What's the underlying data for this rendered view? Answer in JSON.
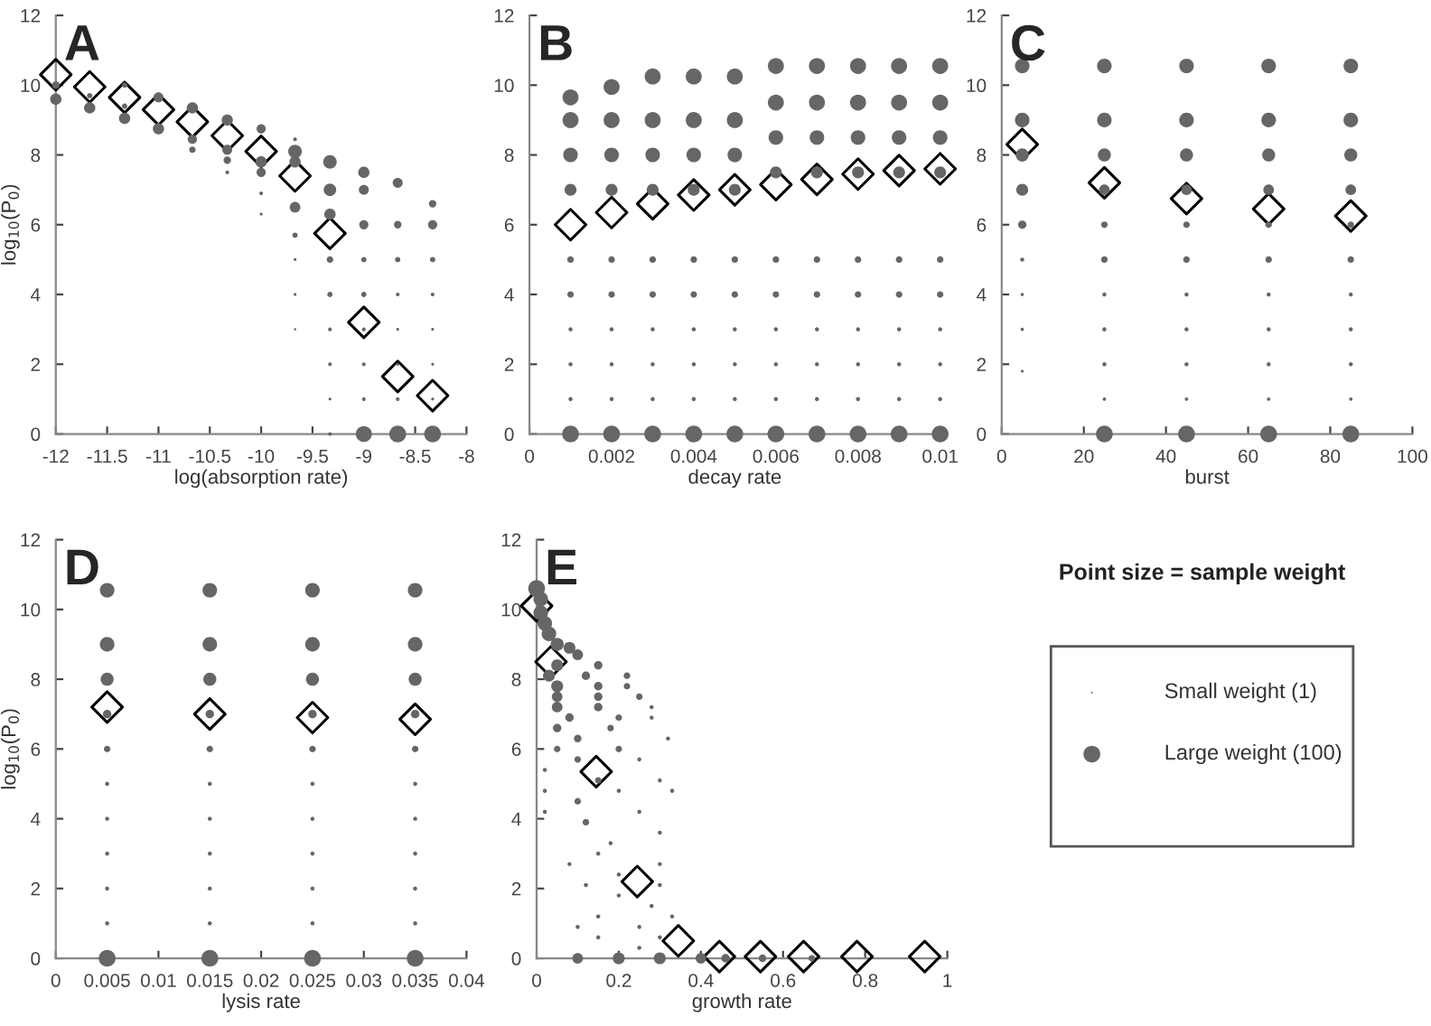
{
  "chart_data": [
    {
      "type": "scatter",
      "title": "A",
      "xlabel": "log(absorption rate)",
      "ylabel": "log$_{10}$(P$_{0}$)",
      "xlim": [
        -12,
        -8
      ],
      "xticks": [
        -12,
        -11.5,
        -11,
        -10.5,
        -10,
        -9.5,
        -9,
        -8.5,
        -8
      ],
      "ylim": [
        0,
        12
      ],
      "yticks": [
        0,
        2,
        4,
        6,
        8,
        10,
        12
      ],
      "grid": false,
      "series": [
        {
          "type": "bubble",
          "color": "#666666",
          "x": [
            -12,
            -12,
            -11.67,
            -11.67,
            -11.33,
            -11.33,
            -11.33,
            -11,
            -11,
            -10.67,
            -10.67,
            -10.67,
            -10.33,
            -10.33,
            -10.33,
            -10.33,
            -10,
            -10,
            -10,
            -10,
            -10,
            -9.67,
            -9.67,
            -9.67,
            -9.67,
            -9.67,
            -9.67,
            -9.67,
            -9.67,
            -9.33,
            -9.33,
            -9.33,
            -9.33,
            -9.33,
            -9.33,
            -9.33,
            -9.33,
            -9.33,
            -9,
            -9,
            -9,
            -9,
            -9,
            -9,
            -9,
            -9,
            -9,
            -8.67,
            -8.67,
            -8.67,
            -8.67,
            -8.67,
            -8.67,
            -8.67,
            -8.67,
            -8.33,
            -8.33,
            -8.33,
            -8.33,
            -8.33,
            -8.33,
            -8.33,
            -8.33
          ],
          "values": [
            9.6,
            10.0,
            9.35,
            9.7,
            9.05,
            9.4,
            10.0,
            8.75,
            9.65,
            8.15,
            8.45,
            9.35,
            7.5,
            7.85,
            8.15,
            9.0,
            6.3,
            6.9,
            7.5,
            7.8,
            8.75,
            3.0,
            4.0,
            5.0,
            5.7,
            6.5,
            7.8,
            8.1,
            8.45,
            0,
            1,
            2,
            3,
            4,
            5,
            6.3,
            7.0,
            7.8,
            0,
            1,
            2,
            3,
            4,
            5,
            6,
            7,
            7.5,
            0,
            1,
            2,
            3,
            4,
            5,
            6,
            7.2,
            0,
            1,
            2,
            3,
            4,
            5,
            6,
            6.6
          ],
          "sizes": [
            0.45,
            0.2,
            0.45,
            0.1,
            0.45,
            0.1,
            0.1,
            0.45,
            0.35,
            0.15,
            0.3,
            0.45,
            0.05,
            0.2,
            0.35,
            0.45,
            0.03,
            0.05,
            0.3,
            0.45,
            0.3,
            0.02,
            0.03,
            0.03,
            0.1,
            0.4,
            0.45,
            0.65,
            0.05,
            0.05,
            0.03,
            0.05,
            0.05,
            0.1,
            0.15,
            0.45,
            0.55,
            0.65,
            0.9,
            0.05,
            0.05,
            0.05,
            0.1,
            0.1,
            0.3,
            0.35,
            0.45,
            1,
            0.05,
            0.03,
            0.03,
            0.05,
            0.1,
            0.2,
            0.35,
            1,
            0.03,
            0.03,
            0.03,
            0.05,
            0.1,
            0.3,
            0.2
          ]
        },
        {
          "type": "scatter",
          "marker": "diamond",
          "color": "#000000",
          "x": [
            -12,
            -11.67,
            -11.33,
            -11,
            -10.67,
            -10.33,
            -10,
            -9.67,
            -9.33,
            -9,
            -8.67,
            -8.33
          ],
          "values": [
            10.3,
            9.95,
            9.65,
            9.3,
            8.95,
            8.55,
            8.1,
            7.4,
            5.75,
            3.2,
            1.65,
            1.1
          ]
        }
      ]
    },
    {
      "type": "scatter",
      "title": "B",
      "xlabel": "decay rate",
      "xlim": [
        0,
        0.01
      ],
      "xticks": [
        0,
        0.002,
        0.004,
        0.006,
        0.008,
        0.01
      ],
      "ylim": [
        0,
        12
      ],
      "yticks": [
        0,
        2,
        4,
        6,
        8,
        10,
        12
      ],
      "grid": false,
      "series": [
        {
          "type": "bubble",
          "color": "#666666",
          "x": [
            0.001,
            0.001,
            0.001,
            0.001,
            0.001,
            0.001,
            0.001,
            0.001,
            0.001,
            0.001,
            0.002,
            0.002,
            0.002,
            0.002,
            0.002,
            0.002,
            0.002,
            0.002,
            0.002,
            0.002,
            0.003,
            0.003,
            0.003,
            0.003,
            0.003,
            0.003,
            0.003,
            0.003,
            0.003,
            0.003,
            0.004,
            0.004,
            0.004,
            0.004,
            0.004,
            0.004,
            0.004,
            0.004,
            0.004,
            0.004,
            0.005,
            0.005,
            0.005,
            0.005,
            0.005,
            0.005,
            0.005,
            0.005,
            0.005,
            0.005,
            0.006,
            0.006,
            0.006,
            0.006,
            0.006,
            0.006,
            0.006,
            0.006,
            0.006,
            0.006,
            0.007,
            0.007,
            0.007,
            0.007,
            0.007,
            0.007,
            0.007,
            0.007,
            0.007,
            0.007,
            0.008,
            0.008,
            0.008,
            0.008,
            0.008,
            0.008,
            0.008,
            0.008,
            0.008,
            0.008,
            0.009,
            0.009,
            0.009,
            0.009,
            0.009,
            0.009,
            0.009,
            0.009,
            0.009,
            0.009,
            0.01,
            0.01,
            0.01,
            0.01,
            0.01,
            0.01,
            0.01,
            0.01,
            0.01,
            0.01
          ],
          "values": [
            0,
            1,
            2,
            3,
            4,
            5,
            7,
            8,
            9,
            9.65,
            0,
            1,
            2,
            3,
            4,
            5,
            7,
            8,
            9,
            9.95,
            0,
            1,
            2,
            3,
            4,
            5,
            7,
            8,
            9,
            10.25,
            0,
            1,
            2,
            3,
            4,
            5,
            7,
            8,
            9,
            10.25,
            0,
            1,
            2,
            3,
            4,
            5,
            7,
            8,
            9,
            10.25,
            0,
            1,
            2,
            3,
            4,
            5,
            7.5,
            8.5,
            9.5,
            10.55,
            0,
            1,
            2,
            3,
            4,
            5,
            7.5,
            8.5,
            9.5,
            10.55,
            0,
            1,
            2,
            3,
            4,
            5,
            7.5,
            8.5,
            9.5,
            10.55,
            0,
            1,
            2,
            3,
            4,
            5,
            7.5,
            8.5,
            9.5,
            10.55,
            0,
            1,
            2,
            3,
            4,
            5,
            7.5,
            8.5,
            9.5,
            10.55
          ],
          "sizes": [
            1,
            0.06,
            0.06,
            0.06,
            0.15,
            0.15,
            0.5,
            0.75,
            0.9,
            0.9,
            1,
            0.06,
            0.06,
            0.06,
            0.15,
            0.15,
            0.5,
            0.75,
            0.9,
            0.9,
            1,
            0.06,
            0.06,
            0.06,
            0.15,
            0.15,
            0.5,
            0.75,
            0.9,
            0.9,
            1,
            0.06,
            0.06,
            0.06,
            0.15,
            0.15,
            0.5,
            0.75,
            0.9,
            0.9,
            1,
            0.06,
            0.06,
            0.06,
            0.15,
            0.15,
            0.5,
            0.75,
            0.9,
            0.9,
            1,
            0.06,
            0.06,
            0.06,
            0.15,
            0.15,
            0.5,
            0.75,
            0.9,
            0.9,
            1,
            0.06,
            0.06,
            0.06,
            0.15,
            0.15,
            0.5,
            0.75,
            0.9,
            0.9,
            1,
            0.06,
            0.06,
            0.06,
            0.15,
            0.15,
            0.5,
            0.75,
            0.9,
            0.9,
            1,
            0.06,
            0.06,
            0.06,
            0.15,
            0.15,
            0.5,
            0.75,
            0.9,
            0.9,
            1,
            0.06,
            0.06,
            0.06,
            0.15,
            0.15,
            0.5,
            0.75,
            0.9,
            0.9
          ]
        },
        {
          "type": "scatter",
          "marker": "diamond",
          "color": "#000000",
          "x": [
            0.001,
            0.002,
            0.003,
            0.004,
            0.005,
            0.006,
            0.007,
            0.008,
            0.009,
            0.01
          ],
          "values": [
            6.0,
            6.35,
            6.6,
            6.85,
            7.0,
            7.15,
            7.3,
            7.45,
            7.55,
            7.6
          ]
        }
      ]
    },
    {
      "type": "scatter",
      "title": "C",
      "xlabel": "burst",
      "xlim": [
        0,
        100
      ],
      "xticks": [
        0,
        20,
        40,
        60,
        80,
        100
      ],
      "ylim": [
        0,
        12
      ],
      "yticks": [
        0,
        2,
        4,
        6,
        8,
        10,
        12
      ],
      "grid": false,
      "series": [
        {
          "type": "bubble",
          "color": "#666666",
          "x": [
            5,
            5,
            5,
            5,
            5,
            5,
            5,
            5,
            5,
            25,
            25,
            25,
            25,
            25,
            25,
            25,
            25,
            25,
            25,
            25,
            45,
            45,
            45,
            45,
            45,
            45,
            45,
            45,
            45,
            45,
            45,
            65,
            65,
            65,
            65,
            65,
            65,
            65,
            65,
            65,
            65,
            65,
            85,
            85,
            85,
            85,
            85,
            85,
            85,
            85,
            85,
            85,
            85
          ],
          "values": [
            1.8,
            3,
            4,
            5,
            6,
            7,
            8,
            9,
            10.55,
            0,
            1,
            2,
            3,
            4,
            5,
            6,
            7,
            8,
            9,
            10.55,
            0,
            1,
            2,
            3,
            4,
            5,
            6,
            7,
            8,
            9,
            10.55,
            0,
            1,
            2,
            3,
            4,
            5,
            6,
            7,
            8,
            9,
            10.55,
            0,
            1,
            2,
            3,
            4,
            5,
            6,
            7,
            8,
            9,
            10.55
          ],
          "sizes": [
            0.03,
            0.04,
            0.04,
            0.06,
            0.25,
            0.5,
            0.6,
            0.75,
            0.75,
            1,
            0.04,
            0.06,
            0.06,
            0.06,
            0.15,
            0.15,
            0.4,
            0.6,
            0.75,
            0.75,
            1,
            0.04,
            0.06,
            0.06,
            0.06,
            0.15,
            0.15,
            0.4,
            0.6,
            0.75,
            0.75,
            1,
            0.04,
            0.06,
            0.06,
            0.06,
            0.15,
            0.15,
            0.4,
            0.6,
            0.75,
            0.75,
            1,
            0.04,
            0.06,
            0.06,
            0.06,
            0.15,
            0.15,
            0.4,
            0.6,
            0.75,
            0.75
          ]
        },
        {
          "type": "scatter",
          "marker": "diamond",
          "color": "#000000",
          "x": [
            5,
            25,
            45,
            65,
            85
          ],
          "values": [
            8.3,
            7.2,
            6.75,
            6.45,
            6.25
          ]
        }
      ]
    },
    {
      "type": "scatter",
      "title": "D",
      "xlabel": "lysis rate",
      "ylabel": "log$_{10}$(P$_{0}$)",
      "xlim": [
        0,
        0.04
      ],
      "xticks": [
        0,
        0.005,
        0.01,
        0.015,
        0.02,
        0.025,
        0.03,
        0.035,
        0.04
      ],
      "ylim": [
        0,
        12
      ],
      "yticks": [
        0,
        2,
        4,
        6,
        8,
        10,
        12
      ],
      "grid": false,
      "series": [
        {
          "type": "bubble",
          "color": "#666666",
          "x": [
            0.005,
            0.005,
            0.005,
            0.005,
            0.005,
            0.005,
            0.005,
            0.005,
            0.005,
            0.005,
            0.005,
            0.015,
            0.015,
            0.015,
            0.015,
            0.015,
            0.015,
            0.015,
            0.015,
            0.015,
            0.015,
            0.015,
            0.025,
            0.025,
            0.025,
            0.025,
            0.025,
            0.025,
            0.025,
            0.025,
            0.025,
            0.025,
            0.025,
            0.035,
            0.035,
            0.035,
            0.035,
            0.035,
            0.035,
            0.035,
            0.035,
            0.035,
            0.035,
            0.035
          ],
          "values": [
            0,
            1,
            2,
            3,
            4,
            5,
            6,
            7,
            8,
            9,
            10.55,
            0,
            1,
            2,
            3,
            4,
            5,
            6,
            7,
            8,
            9,
            10.55,
            0,
            1,
            2,
            3,
            4,
            5,
            6,
            7,
            8,
            9,
            10.55,
            0,
            1,
            2,
            3,
            4,
            5,
            6,
            7,
            8,
            9,
            10.55
          ],
          "sizes": [
            1,
            0.06,
            0.06,
            0.06,
            0.06,
            0.06,
            0.15,
            0.25,
            0.6,
            0.75,
            0.75,
            1,
            0.06,
            0.06,
            0.06,
            0.06,
            0.06,
            0.15,
            0.25,
            0.6,
            0.75,
            0.75,
            1,
            0.06,
            0.06,
            0.06,
            0.06,
            0.06,
            0.15,
            0.25,
            0.6,
            0.75,
            0.75,
            1,
            0.06,
            0.06,
            0.06,
            0.06,
            0.06,
            0.15,
            0.25,
            0.6,
            0.75,
            0.75
          ]
        },
        {
          "type": "scatter",
          "marker": "diamond",
          "color": "#000000",
          "x": [
            0.005,
            0.015,
            0.025,
            0.035
          ],
          "values": [
            7.2,
            7.0,
            6.9,
            6.85
          ]
        }
      ]
    },
    {
      "type": "scatter",
      "title": "E",
      "xlabel": "growth rate",
      "xlim": [
        0,
        1
      ],
      "xticks": [
        0,
        0.2,
        0.4,
        0.6,
        0.8,
        1
      ],
      "ylim": [
        0,
        12
      ],
      "yticks": [
        0,
        2,
        4,
        6,
        8,
        10,
        12
      ],
      "grid": false,
      "series": [
        {
          "type": "bubble",
          "color": "#666666",
          "x": [
            0,
            0.01,
            0.01,
            0.02,
            0.03,
            0.05,
            0.08,
            0.1,
            0.05,
            0.15,
            0.03,
            0.12,
            0.22,
            0.05,
            0.15,
            0.22,
            0.05,
            0.15,
            0.25,
            0.05,
            0.15,
            0.28,
            0.08,
            0.2,
            0.28,
            0.05,
            0.18,
            0.32,
            0.1,
            0.05,
            0.2,
            0.1,
            0.25,
            0.02,
            0.15,
            0.3,
            0.02,
            0.2,
            0.33,
            0.1,
            0.02,
            0.25,
            0.12,
            0.3,
            0.18,
            0.15,
            0.08,
            0.3,
            0.2,
            0.12,
            0.3,
            0.2,
            0.28,
            0.15,
            0.33,
            0.1,
            0.25,
            0.15,
            0.3,
            0.25,
            0.1,
            0.2,
            0.3,
            0.4,
            0.46,
            0.55,
            0.67
          ],
          "values": [
            10.6,
            10.3,
            9.9,
            9.6,
            9.3,
            9.0,
            8.9,
            8.7,
            8.4,
            8.4,
            8.1,
            8.1,
            8.1,
            7.8,
            7.8,
            7.8,
            7.5,
            7.5,
            7.5,
            7.2,
            7.2,
            7.2,
            6.9,
            6.9,
            6.9,
            6.6,
            6.6,
            6.3,
            6.3,
            6.0,
            6.0,
            5.7,
            5.7,
            5.4,
            5.1,
            5.1,
            4.8,
            4.8,
            4.8,
            4.5,
            4.2,
            4.2,
            3.9,
            3.6,
            3.3,
            3.0,
            2.7,
            2.7,
            2.4,
            2.1,
            2.1,
            1.8,
            1.5,
            1.2,
            1.2,
            0.9,
            0.9,
            0.6,
            0.6,
            0.3,
            0,
            0,
            0,
            0,
            0,
            0,
            0
          ],
          "sizes": [
            1,
            0.75,
            0.75,
            0.75,
            0.75,
            0.6,
            0.5,
            0.4,
            0.5,
            0.25,
            0.5,
            0.25,
            0.15,
            0.5,
            0.25,
            0.15,
            0.4,
            0.25,
            0.15,
            0.4,
            0.25,
            0.06,
            0.25,
            0.15,
            0.06,
            0.25,
            0.15,
            0.06,
            0.2,
            0.15,
            0.15,
            0.15,
            0.06,
            0.06,
            0.15,
            0.06,
            0.06,
            0.06,
            0.06,
            0.15,
            0.06,
            0.06,
            0.15,
            0.06,
            0.06,
            0.06,
            0.06,
            0.06,
            0.06,
            0.06,
            0.06,
            0.06,
            0.06,
            0.06,
            0.06,
            0.06,
            0.06,
            0.06,
            0.06,
            0.06,
            0.4,
            0.5,
            0.5,
            0.4,
            0.25,
            0.2,
            0.15
          ]
        },
        {
          "type": "scatter",
          "marker": "diamond",
          "color": "#000000",
          "x": [
            0,
            0.035,
            0.145,
            0.245,
            0.345,
            0.445,
            0.545,
            0.65,
            0.78,
            0.945
          ],
          "values": [
            10.1,
            8.5,
            5.35,
            2.2,
            0.5,
            0.05,
            0.05,
            0.05,
            0.05,
            0.05
          ]
        }
      ]
    },
    {
      "type": "other",
      "title": "Point size = sample weight",
      "annotations": [
        "Small weight (1)",
        "Large weight (100)"
      ]
    }
  ]
}
